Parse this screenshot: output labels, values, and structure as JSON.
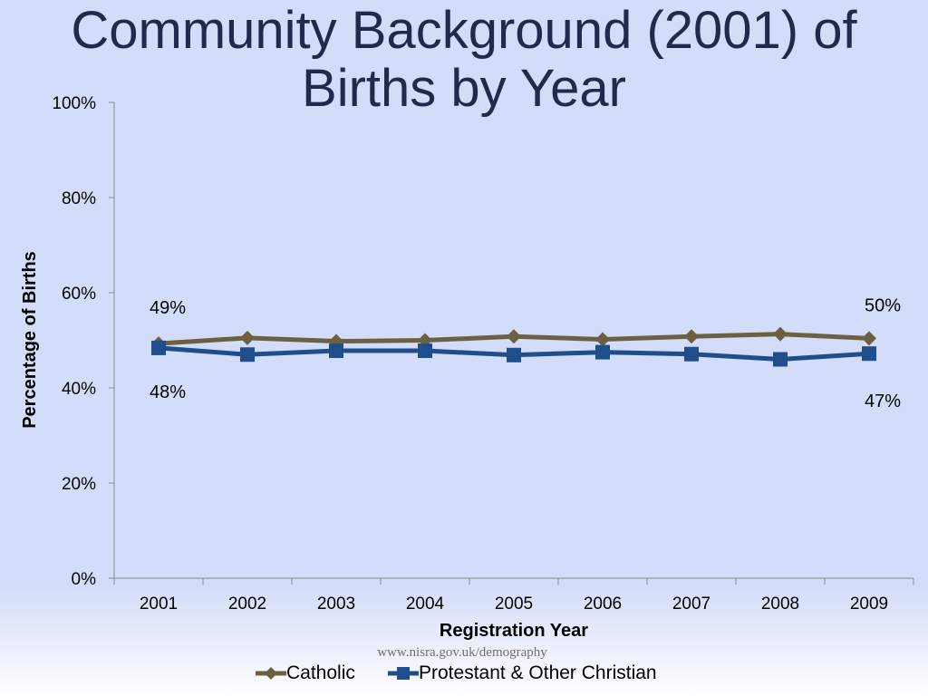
{
  "title": {
    "line1": "Community Background (2001) of",
    "line2": "Births by Year"
  },
  "source_text": "www.nisra.gov.uk/demography",
  "chart_data": {
    "type": "line",
    "title": "Community Background (2001) of Births by Year",
    "xlabel": "Registration Year",
    "ylabel": "Percentage of Births",
    "categories": [
      "2001",
      "2002",
      "2003",
      "2004",
      "2005",
      "2006",
      "2007",
      "2008",
      "2009"
    ],
    "ylim": [
      0,
      100
    ],
    "yticks": [
      "0%",
      "20%",
      "40%",
      "60%",
      "80%",
      "100%"
    ],
    "ytick_values": [
      0,
      20,
      40,
      60,
      80,
      100
    ],
    "grid": false,
    "legend_position": "bottom",
    "series": [
      {
        "name": "Catholic",
        "color": "#6b6140",
        "marker": "diamond",
        "values": [
          49.3,
          50.5,
          49.8,
          50.0,
          50.8,
          50.2,
          50.8,
          51.3,
          50.4
        ]
      },
      {
        "name": "Protestant & Other Christian",
        "color": "#1f4e8c",
        "marker": "square",
        "values": [
          48.4,
          47.0,
          47.8,
          47.8,
          46.9,
          47.5,
          47.1,
          46.0,
          47.2
        ]
      }
    ],
    "data_labels": [
      {
        "series": "Catholic",
        "category": "2001",
        "text": "49%"
      },
      {
        "series": "Catholic",
        "category": "2009",
        "text": "50%"
      },
      {
        "series": "Protestant & Other Christian",
        "category": "2001",
        "text": "48%"
      },
      {
        "series": "Protestant & Other Christian",
        "category": "2009",
        "text": "47%"
      }
    ]
  }
}
